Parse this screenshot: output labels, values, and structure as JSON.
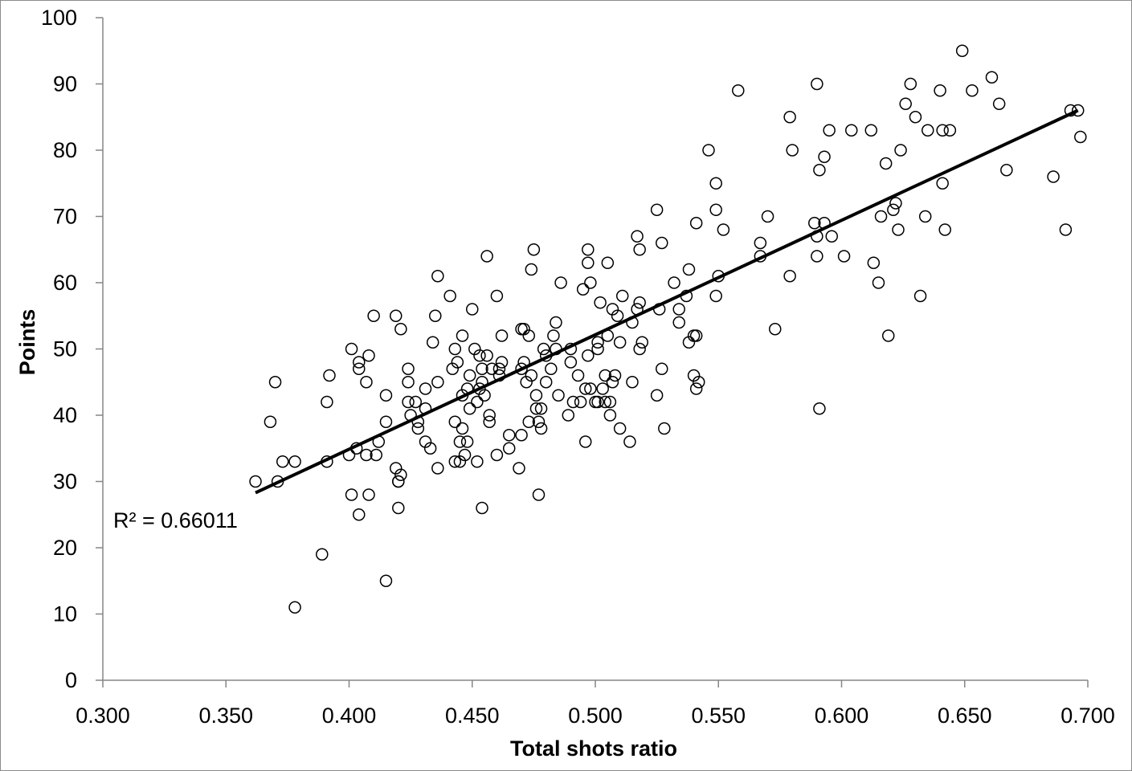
{
  "chart_data": {
    "type": "scatter",
    "title": "",
    "xlabel": "Total shots ratio",
    "ylabel": "Points",
    "xlim": [
      0.3,
      0.7
    ],
    "ylim": [
      0,
      100
    ],
    "xticks": [
      "0.300",
      "0.350",
      "0.400",
      "0.450",
      "0.500",
      "0.550",
      "0.600",
      "0.650",
      "0.700"
    ],
    "yticks": [
      "0",
      "10",
      "20",
      "30",
      "40",
      "50",
      "60",
      "70",
      "80",
      "90",
      "100"
    ],
    "grid": false,
    "legend": "none",
    "marker": "open-circle",
    "marker_color": "#000000",
    "annotation": "R² = 0.66011",
    "trendline": {
      "type": "linear",
      "x": [
        0.362,
        0.696
      ],
      "y": [
        28.3,
        86.0
      ]
    },
    "series": [
      {
        "points": [
          [
            0.362,
            30
          ],
          [
            0.368,
            39
          ],
          [
            0.37,
            45
          ],
          [
            0.371,
            30
          ],
          [
            0.373,
            33
          ],
          [
            0.378,
            33
          ],
          [
            0.378,
            11
          ],
          [
            0.389,
            19
          ],
          [
            0.391,
            42
          ],
          [
            0.391,
            33
          ],
          [
            0.392,
            46
          ],
          [
            0.4,
            34
          ],
          [
            0.401,
            50
          ],
          [
            0.401,
            28
          ],
          [
            0.403,
            35
          ],
          [
            0.404,
            48
          ],
          [
            0.404,
            47
          ],
          [
            0.404,
            25
          ],
          [
            0.407,
            34
          ],
          [
            0.407,
            45
          ],
          [
            0.408,
            49
          ],
          [
            0.408,
            28
          ],
          [
            0.41,
            55
          ],
          [
            0.411,
            34
          ],
          [
            0.412,
            36
          ],
          [
            0.415,
            43
          ],
          [
            0.415,
            39
          ],
          [
            0.415,
            15
          ],
          [
            0.419,
            55
          ],
          [
            0.419,
            32
          ],
          [
            0.42,
            30
          ],
          [
            0.42,
            30
          ],
          [
            0.42,
            26
          ],
          [
            0.421,
            53
          ],
          [
            0.421,
            31
          ],
          [
            0.424,
            47
          ],
          [
            0.424,
            45
          ],
          [
            0.424,
            42
          ],
          [
            0.425,
            40
          ],
          [
            0.427,
            42
          ],
          [
            0.428,
            39
          ],
          [
            0.428,
            38
          ],
          [
            0.431,
            44
          ],
          [
            0.431,
            41
          ],
          [
            0.431,
            36
          ],
          [
            0.433,
            35
          ],
          [
            0.434,
            51
          ],
          [
            0.435,
            55
          ],
          [
            0.436,
            61
          ],
          [
            0.436,
            45
          ],
          [
            0.436,
            32
          ],
          [
            0.441,
            58
          ],
          [
            0.442,
            47
          ],
          [
            0.443,
            50
          ],
          [
            0.443,
            39
          ],
          [
            0.443,
            33
          ],
          [
            0.444,
            48
          ],
          [
            0.445,
            36
          ],
          [
            0.445,
            33
          ],
          [
            0.446,
            52
          ],
          [
            0.446,
            43
          ],
          [
            0.446,
            38
          ],
          [
            0.447,
            34
          ],
          [
            0.448,
            44
          ],
          [
            0.448,
            36
          ],
          [
            0.449,
            46
          ],
          [
            0.449,
            41
          ],
          [
            0.45,
            56
          ],
          [
            0.451,
            50
          ],
          [
            0.452,
            42
          ],
          [
            0.452,
            33
          ],
          [
            0.453,
            49
          ],
          [
            0.453,
            44
          ],
          [
            0.454,
            47
          ],
          [
            0.454,
            45
          ],
          [
            0.454,
            26
          ],
          [
            0.455,
            43
          ],
          [
            0.456,
            64
          ],
          [
            0.456,
            49
          ],
          [
            0.457,
            40
          ],
          [
            0.457,
            39
          ],
          [
            0.458,
            47
          ],
          [
            0.46,
            34
          ],
          [
            0.46,
            58
          ],
          [
            0.461,
            46
          ],
          [
            0.461,
            47
          ],
          [
            0.462,
            52
          ],
          [
            0.462,
            48
          ],
          [
            0.465,
            37
          ],
          [
            0.465,
            35
          ],
          [
            0.469,
            32
          ],
          [
            0.47,
            53
          ],
          [
            0.47,
            47
          ],
          [
            0.47,
            37
          ],
          [
            0.471,
            48
          ],
          [
            0.471,
            53
          ],
          [
            0.472,
            45
          ],
          [
            0.473,
            52
          ],
          [
            0.473,
            39
          ],
          [
            0.474,
            62
          ],
          [
            0.474,
            46
          ],
          [
            0.475,
            65
          ],
          [
            0.476,
            43
          ],
          [
            0.476,
            41
          ],
          [
            0.477,
            39
          ],
          [
            0.477,
            28
          ],
          [
            0.478,
            41
          ],
          [
            0.478,
            38
          ],
          [
            0.479,
            50
          ],
          [
            0.48,
            49
          ],
          [
            0.48,
            45
          ],
          [
            0.482,
            47
          ],
          [
            0.483,
            52
          ],
          [
            0.484,
            54
          ],
          [
            0.484,
            50
          ],
          [
            0.485,
            43
          ],
          [
            0.486,
            60
          ],
          [
            0.489,
            40
          ],
          [
            0.49,
            50
          ],
          [
            0.49,
            48
          ],
          [
            0.491,
            42
          ],
          [
            0.493,
            46
          ],
          [
            0.494,
            42
          ],
          [
            0.495,
            59
          ],
          [
            0.496,
            36
          ],
          [
            0.496,
            44
          ],
          [
            0.497,
            63
          ],
          [
            0.497,
            65
          ],
          [
            0.497,
            49
          ],
          [
            0.498,
            60
          ],
          [
            0.498,
            44
          ],
          [
            0.5,
            42
          ],
          [
            0.501,
            51
          ],
          [
            0.501,
            50
          ],
          [
            0.501,
            42
          ],
          [
            0.502,
            57
          ],
          [
            0.503,
            44
          ],
          [
            0.504,
            46
          ],
          [
            0.504,
            42
          ],
          [
            0.505,
            63
          ],
          [
            0.505,
            52
          ],
          [
            0.506,
            40
          ],
          [
            0.506,
            42
          ],
          [
            0.507,
            45
          ],
          [
            0.507,
            56
          ],
          [
            0.508,
            46
          ],
          [
            0.509,
            55
          ],
          [
            0.51,
            38
          ],
          [
            0.51,
            51
          ],
          [
            0.511,
            58
          ],
          [
            0.514,
            36
          ],
          [
            0.515,
            54
          ],
          [
            0.515,
            45
          ],
          [
            0.517,
            67
          ],
          [
            0.517,
            56
          ],
          [
            0.518,
            57
          ],
          [
            0.518,
            65
          ],
          [
            0.518,
            50
          ],
          [
            0.519,
            51
          ],
          [
            0.525,
            71
          ],
          [
            0.525,
            43
          ],
          [
            0.526,
            56
          ],
          [
            0.527,
            66
          ],
          [
            0.527,
            47
          ],
          [
            0.528,
            38
          ],
          [
            0.532,
            60
          ],
          [
            0.534,
            56
          ],
          [
            0.534,
            54
          ],
          [
            0.537,
            58
          ],
          [
            0.538,
            51
          ],
          [
            0.538,
            62
          ],
          [
            0.54,
            52
          ],
          [
            0.54,
            46
          ],
          [
            0.541,
            52
          ],
          [
            0.541,
            69
          ],
          [
            0.541,
            44
          ],
          [
            0.542,
            45
          ],
          [
            0.546,
            80
          ],
          [
            0.549,
            75
          ],
          [
            0.549,
            71
          ],
          [
            0.549,
            58
          ],
          [
            0.55,
            61
          ],
          [
            0.552,
            68
          ],
          [
            0.558,
            89
          ],
          [
            0.567,
            66
          ],
          [
            0.567,
            64
          ],
          [
            0.57,
            70
          ],
          [
            0.573,
            53
          ],
          [
            0.579,
            85
          ],
          [
            0.579,
            61
          ],
          [
            0.58,
            80
          ],
          [
            0.589,
            69
          ],
          [
            0.59,
            90
          ],
          [
            0.59,
            67
          ],
          [
            0.59,
            64
          ],
          [
            0.591,
            77
          ],
          [
            0.591,
            41
          ],
          [
            0.593,
            79
          ],
          [
            0.593,
            69
          ],
          [
            0.595,
            83
          ],
          [
            0.596,
            67
          ],
          [
            0.601,
            64
          ],
          [
            0.604,
            83
          ],
          [
            0.612,
            83
          ],
          [
            0.613,
            63
          ],
          [
            0.615,
            60
          ],
          [
            0.616,
            70
          ],
          [
            0.618,
            78
          ],
          [
            0.619,
            52
          ],
          [
            0.621,
            71
          ],
          [
            0.622,
            72
          ],
          [
            0.623,
            68
          ],
          [
            0.624,
            80
          ],
          [
            0.626,
            87
          ],
          [
            0.628,
            90
          ],
          [
            0.63,
            85
          ],
          [
            0.632,
            58
          ],
          [
            0.634,
            70
          ],
          [
            0.635,
            83
          ],
          [
            0.64,
            89
          ],
          [
            0.641,
            83
          ],
          [
            0.641,
            75
          ],
          [
            0.642,
            68
          ],
          [
            0.644,
            83
          ],
          [
            0.649,
            95
          ],
          [
            0.653,
            89
          ],
          [
            0.661,
            91
          ],
          [
            0.664,
            87
          ],
          [
            0.667,
            77
          ],
          [
            0.686,
            76
          ],
          [
            0.691,
            68
          ],
          [
            0.693,
            86
          ],
          [
            0.696,
            86
          ],
          [
            0.697,
            82
          ]
        ]
      }
    ]
  }
}
